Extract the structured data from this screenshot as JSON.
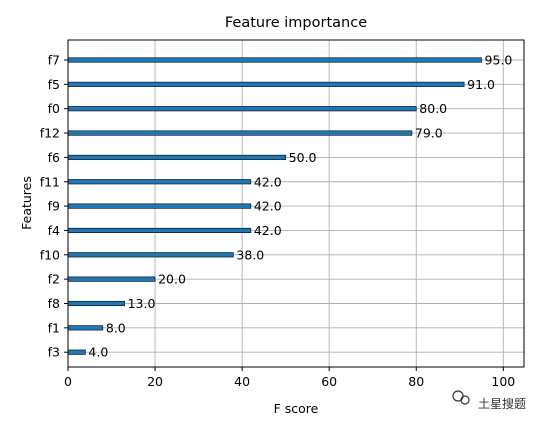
{
  "chart_data": {
    "type": "bar",
    "orientation": "horizontal",
    "title": "Feature importance",
    "xlabel": "F score",
    "ylabel": "Features",
    "categories": [
      "f7",
      "f5",
      "f0",
      "f12",
      "f6",
      "f11",
      "f9",
      "f4",
      "f10",
      "f2",
      "f8",
      "f1",
      "f3"
    ],
    "values": [
      95,
      91,
      80,
      79,
      50,
      42,
      42,
      42,
      38,
      20,
      13,
      8,
      4
    ],
    "data_labels": [
      "95.0",
      "91.0",
      "80.0",
      "79.0",
      "50.0",
      "42.0",
      "42.0",
      "42.0",
      "38.0",
      "20.0",
      "13.0",
      "8.0",
      "4.0"
    ],
    "xlim": [
      0,
      104.75
    ],
    "xticks": [
      0,
      20,
      40,
      60,
      80,
      100
    ],
    "xtick_labels": [
      "0",
      "20",
      "40",
      "60",
      "80",
      "100"
    ],
    "grid": true,
    "bar_color": "#1f77b4"
  },
  "watermark": {
    "brand_text": "土星搜题",
    "icon": "wechat-icon"
  }
}
